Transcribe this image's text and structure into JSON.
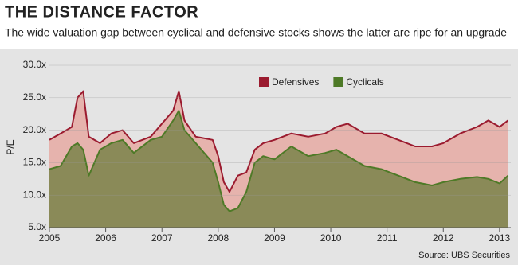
{
  "chart_data": {
    "type": "area-line",
    "title": "THE DISTANCE FACTOR",
    "subtitle": "The wide valuation gap between cyclical and defensive stocks shows the latter are ripe for an upgrade",
    "y_label": "P/E",
    "source": "Source: UBS Securities",
    "x": [
      2005,
      2005.2,
      2005.4,
      2005.5,
      2005.6,
      2005.7,
      2005.9,
      2006.1,
      2006.3,
      2006.5,
      2006.8,
      2007,
      2007.2,
      2007.3,
      2007.4,
      2007.6,
      2007.9,
      2008,
      2008.1,
      2008.2,
      2008.35,
      2008.5,
      2008.65,
      2008.8,
      2009,
      2009.3,
      2009.6,
      2009.9,
      2010.1,
      2010.3,
      2010.6,
      2010.9,
      2011.2,
      2011.5,
      2011.8,
      2012,
      2012.3,
      2012.6,
      2012.8,
      2013,
      2013.15
    ],
    "series": [
      {
        "name": "Defensives",
        "color": "#9b1b2f",
        "fill": "#e6b3ad",
        "values": [
          18.5,
          19.5,
          20.5,
          25,
          26,
          19,
          18,
          19.5,
          20,
          18,
          19,
          21,
          23,
          26,
          21.5,
          19,
          18.5,
          16,
          12,
          10.5,
          13,
          13.5,
          17,
          18,
          18.5,
          19.5,
          19,
          19.5,
          20.5,
          21,
          19.5,
          19.5,
          18.5,
          17.5,
          17.5,
          18,
          19.5,
          20.5,
          21.5,
          20.5,
          21.5
        ]
      },
      {
        "name": "Cyclicals",
        "color": "#4e7a27",
        "fill": "#8a8a58",
        "values": [
          14,
          14.5,
          17.5,
          18,
          17,
          13,
          17,
          18,
          18.5,
          16.5,
          18.5,
          19,
          21.5,
          23,
          20,
          18,
          15,
          12,
          8.5,
          7.5,
          8,
          10.5,
          15,
          16,
          15.5,
          17.5,
          16,
          16.5,
          17,
          16,
          14.5,
          14,
          13,
          12,
          11.5,
          12,
          12.5,
          12.8,
          12.5,
          11.8,
          13
        ]
      }
    ],
    "xlim": [
      2005,
      2013.2
    ],
    "xticks": [
      2005,
      2006,
      2007,
      2008,
      2009,
      2010,
      2011,
      2012,
      2013
    ],
    "ylim": [
      5,
      30
    ],
    "yticks": [
      {
        "value": 5,
        "label": "5.0x"
      },
      {
        "value": 10,
        "label": "10.0x"
      },
      {
        "value": 15,
        "label": "15.0x"
      },
      {
        "value": 20,
        "label": "20.0x"
      },
      {
        "value": 25,
        "label": "25.0x"
      },
      {
        "value": 30,
        "label": "30.0x"
      }
    ],
    "grid": true
  }
}
